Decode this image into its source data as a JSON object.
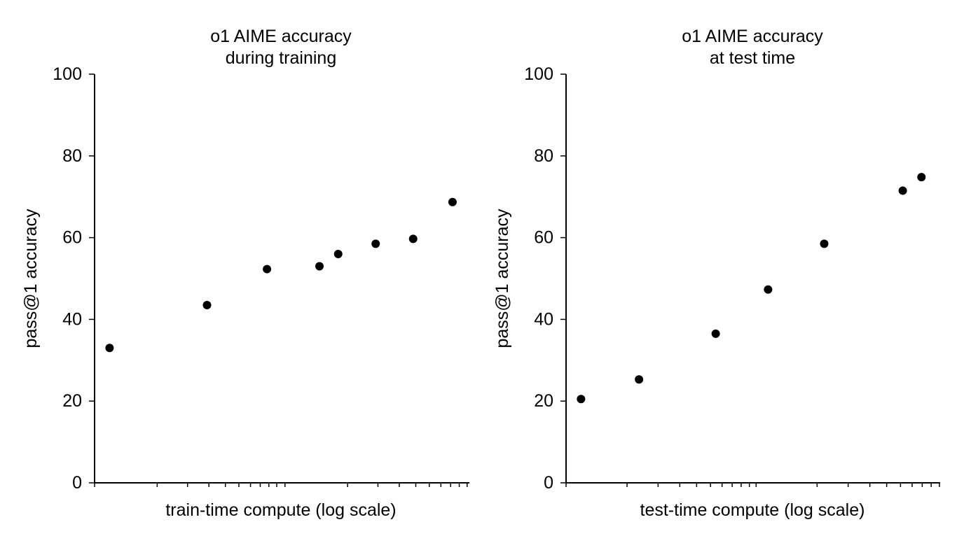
{
  "chart_data": [
    {
      "type": "scatter",
      "title": "o1 AIME accuracy\nduring training",
      "title_lines": [
        "o1 AIME accuracy",
        "during training"
      ],
      "xlabel": "train-time compute (log scale)",
      "ylabel": "pass@1 accuracy",
      "x_scale": "log",
      "x_tick_labels": "none",
      "ylim": [
        0,
        100
      ],
      "yticks": [
        0,
        20,
        40,
        60,
        80,
        100
      ],
      "grid": false,
      "series": [
        {
          "color": "#000000",
          "points": [
            {
              "x": 0.04,
              "y": 33
            },
            {
              "x": 0.3,
              "y": 43.5
            },
            {
              "x": 0.46,
              "y": 52.3
            },
            {
              "x": 0.6,
              "y": 53
            },
            {
              "x": 0.65,
              "y": 56
            },
            {
              "x": 0.75,
              "y": 58.5
            },
            {
              "x": 0.85,
              "y": 59.7
            },
            {
              "x": 0.955,
              "y": 68.7
            }
          ]
        }
      ]
    },
    {
      "type": "scatter",
      "title": "o1 AIME accuracy\nat test time",
      "title_lines": [
        "o1 AIME accuracy",
        "at test time"
      ],
      "xlabel": "test-time compute (log scale)",
      "ylabel": "pass@1 accuracy",
      "x_scale": "log",
      "x_tick_labels": "none",
      "ylim": [
        0,
        100
      ],
      "yticks": [
        0,
        20,
        40,
        60,
        80,
        100
      ],
      "grid": false,
      "series": [
        {
          "color": "#000000",
          "points": [
            {
              "x": 0.04,
              "y": 20.5
            },
            {
              "x": 0.195,
              "y": 25.3
            },
            {
              "x": 0.4,
              "y": 36.5
            },
            {
              "x": 0.54,
              "y": 47.3
            },
            {
              "x": 0.69,
              "y": 58.5
            },
            {
              "x": 0.9,
              "y": 71.5
            },
            {
              "x": 0.95,
              "y": 74.8
            }
          ]
        }
      ]
    }
  ]
}
